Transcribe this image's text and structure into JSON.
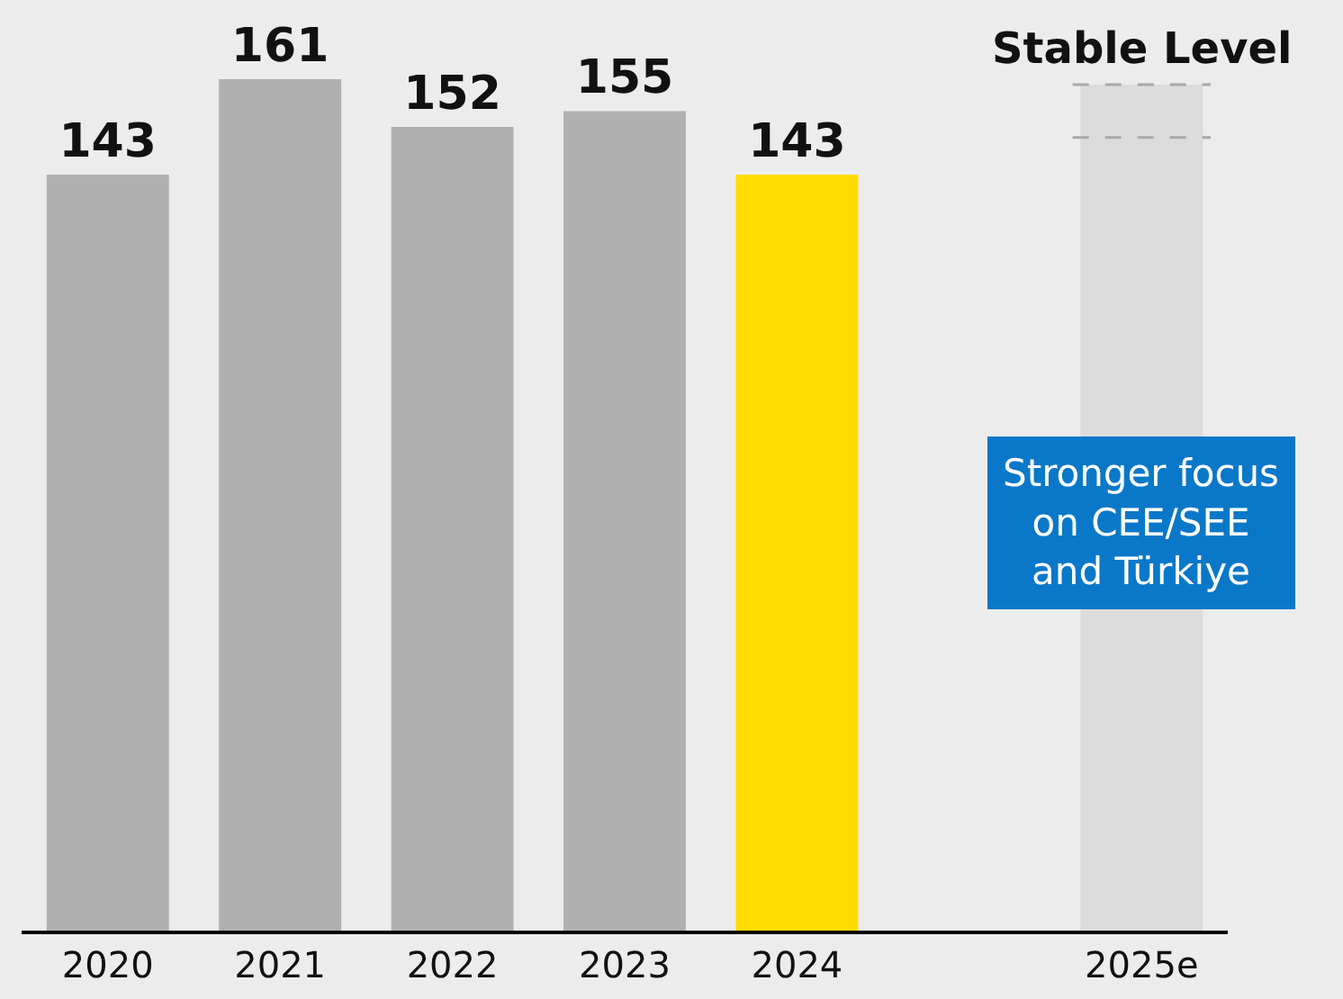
{
  "chart_data": {
    "type": "bar",
    "categories": [
      "2020",
      "2021",
      "2022",
      "2023",
      "2024",
      null,
      "2025e"
    ],
    "values": [
      143,
      161,
      152,
      155,
      143,
      null,
      160
    ],
    "colors": [
      "#b0b0b0",
      "#b0b0b0",
      "#b0b0b0",
      "#b0b0b0",
      "#ffdd00",
      null,
      "#dcdcdc"
    ],
    "value_labels": [
      "143",
      "161",
      "152",
      "155",
      "143",
      null,
      null
    ],
    "ylim": [
      0,
      176
    ],
    "tick_labels": "x",
    "grid": false,
    "legend": false,
    "ref_lines": [
      {
        "axis": "y",
        "value": 160,
        "label": "Stable Level",
        "color": "#a8a8a8",
        "line_style": "dashed"
      },
      {
        "axis": "y",
        "value": 150,
        "label": null,
        "color": "#a8a8a8",
        "line_style": "dashed"
      }
    ],
    "annotations": [
      "Stronger focus\non CEE/SEE\nand Türkiye"
    ]
  }
}
